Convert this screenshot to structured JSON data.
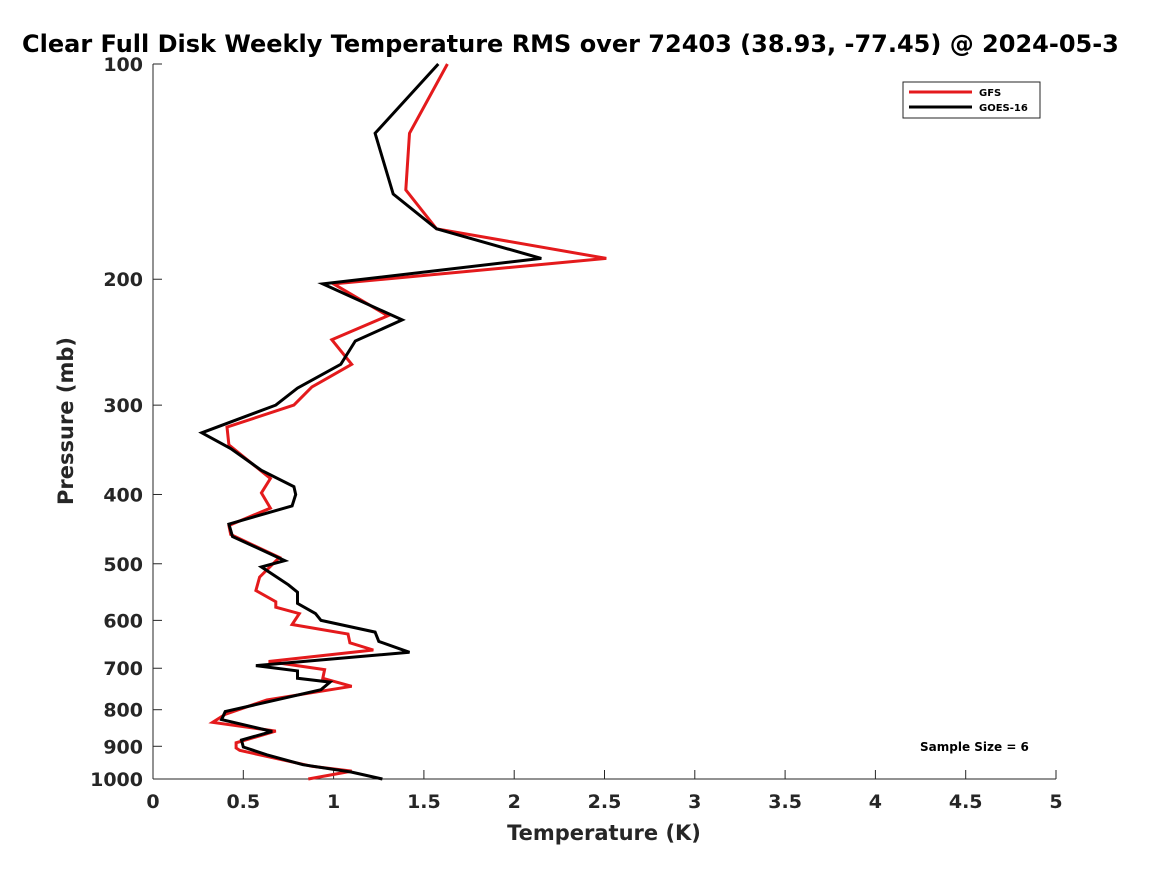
{
  "chart_data": {
    "type": "line",
    "title": "Clear Full Disk Weekly Temperature RMS over 72403 (38.93, -77.45) @ 2024-05-3",
    "xlabel": "Temperature (K)",
    "ylabel": "Pressure (mb)",
    "xlim": [
      0,
      5
    ],
    "ylim": [
      100,
      1000
    ],
    "yscale": "log",
    "y_reversed": true,
    "x_ticks": [
      0,
      0.5,
      1,
      1.5,
      2,
      2.5,
      3,
      3.5,
      4,
      4.5,
      5
    ],
    "x_tick_labels": [
      "0",
      "0.5",
      "1",
      "1.5",
      "2",
      "2.5",
      "3",
      "3.5",
      "4",
      "4.5",
      "5"
    ],
    "y_ticks": [
      100,
      200,
      300,
      400,
      500,
      600,
      700,
      800,
      900,
      1000
    ],
    "y_tick_labels": [
      "100",
      "200",
      "300",
      "400",
      "500",
      "600",
      "700",
      "800",
      "900",
      "1000"
    ],
    "legend_position": "top-right",
    "grid": false,
    "annotation": "Sample Size = 6",
    "series": [
      {
        "name": "GFS",
        "color": "#e41a1c",
        "points": [
          [
            1.63,
            100
          ],
          [
            1.42,
            125
          ],
          [
            1.4,
            150
          ],
          [
            1.57,
            170
          ],
          [
            2.51,
            187
          ],
          [
            1.0,
            203
          ],
          [
            1.3,
            225
          ],
          [
            0.99,
            243
          ],
          [
            1.1,
            263
          ],
          [
            0.88,
            283
          ],
          [
            0.78,
            300
          ],
          [
            0.41,
            322
          ],
          [
            0.42,
            341
          ],
          [
            0.65,
            380
          ],
          [
            0.6,
            398
          ],
          [
            0.65,
            418
          ],
          [
            0.42,
            442
          ],
          [
            0.43,
            455
          ],
          [
            0.7,
            490
          ],
          [
            0.59,
            522
          ],
          [
            0.57,
            545
          ],
          [
            0.68,
            565
          ],
          [
            0.68,
            575
          ],
          [
            0.81,
            587
          ],
          [
            0.77,
            608
          ],
          [
            1.08,
            627
          ],
          [
            1.09,
            645
          ],
          [
            1.22,
            660
          ],
          [
            0.64,
            685
          ],
          [
            0.95,
            703
          ],
          [
            0.94,
            723
          ],
          [
            1.1,
            742
          ],
          [
            0.63,
            775
          ],
          [
            0.4,
            812
          ],
          [
            0.33,
            833
          ],
          [
            0.68,
            857
          ],
          [
            0.46,
            890
          ],
          [
            0.46,
            905
          ],
          [
            0.48,
            912
          ],
          [
            0.88,
            960
          ],
          [
            1.1,
            975
          ],
          [
            0.86,
            1000
          ]
        ]
      },
      {
        "name": "GOES-16",
        "color": "#000000",
        "points": [
          [
            1.58,
            100
          ],
          [
            1.23,
            125
          ],
          [
            1.33,
            152
          ],
          [
            1.57,
            170
          ],
          [
            2.15,
            187
          ],
          [
            0.94,
            203
          ],
          [
            1.38,
            228
          ],
          [
            1.12,
            244
          ],
          [
            1.04,
            263
          ],
          [
            0.8,
            284
          ],
          [
            0.68,
            300
          ],
          [
            0.27,
            328
          ],
          [
            0.43,
            345
          ],
          [
            0.6,
            370
          ],
          [
            0.78,
            390
          ],
          [
            0.79,
            400
          ],
          [
            0.77,
            415
          ],
          [
            0.42,
            440
          ],
          [
            0.44,
            458
          ],
          [
            0.73,
            495
          ],
          [
            0.6,
            505
          ],
          [
            0.75,
            535
          ],
          [
            0.8,
            548
          ],
          [
            0.8,
            568
          ],
          [
            0.9,
            587
          ],
          [
            0.93,
            600
          ],
          [
            1.23,
            623
          ],
          [
            1.25,
            642
          ],
          [
            1.42,
            665
          ],
          [
            0.57,
            694
          ],
          [
            0.8,
            706
          ],
          [
            0.8,
            723
          ],
          [
            0.98,
            732
          ],
          [
            0.93,
            750
          ],
          [
            0.4,
            805
          ],
          [
            0.38,
            826
          ],
          [
            0.66,
            858
          ],
          [
            0.49,
            882
          ],
          [
            0.5,
            902
          ],
          [
            0.63,
            925
          ],
          [
            0.83,
            955
          ],
          [
            1.1,
            978
          ],
          [
            1.27,
            1000
          ]
        ]
      }
    ]
  }
}
